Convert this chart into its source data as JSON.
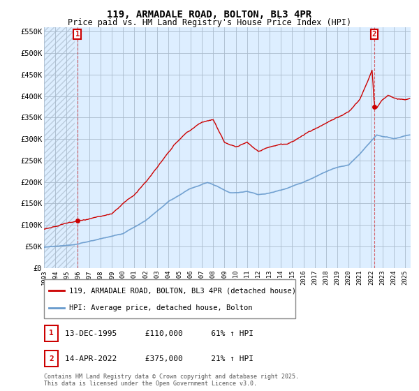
{
  "title": "119, ARMADALE ROAD, BOLTON, BL3 4PR",
  "subtitle": "Price paid vs. HM Land Registry's House Price Index (HPI)",
  "property_label": "119, ARMADALE ROAD, BOLTON, BL3 4PR (detached house)",
  "hpi_label": "HPI: Average price, detached house, Bolton",
  "annotation1": {
    "num": "1",
    "date": "13-DEC-1995",
    "price": "£110,000",
    "hpi": "61% ↑ HPI"
  },
  "annotation2": {
    "num": "2",
    "date": "14-APR-2022",
    "price": "£375,000",
    "hpi": "21% ↑ HPI"
  },
  "footnote": "Contains HM Land Registry data © Crown copyright and database right 2025.\nThis data is licensed under the Open Government Licence v3.0.",
  "sale1_year": 1995.95,
  "sale1_price": 110000,
  "sale2_year": 2022.28,
  "sale2_price": 375000,
  "property_color": "#cc0000",
  "hpi_color": "#6699cc",
  "plot_bg_color": "#ddeeff",
  "hatch_color": "#bbccdd",
  "grid_color": "#aabbcc",
  "ylim": [
    0,
    560000
  ],
  "xlim_start": 1993.0,
  "xlim_end": 2025.5,
  "yticks": [
    0,
    50000,
    100000,
    150000,
    200000,
    250000,
    300000,
    350000,
    400000,
    450000,
    500000,
    550000
  ]
}
